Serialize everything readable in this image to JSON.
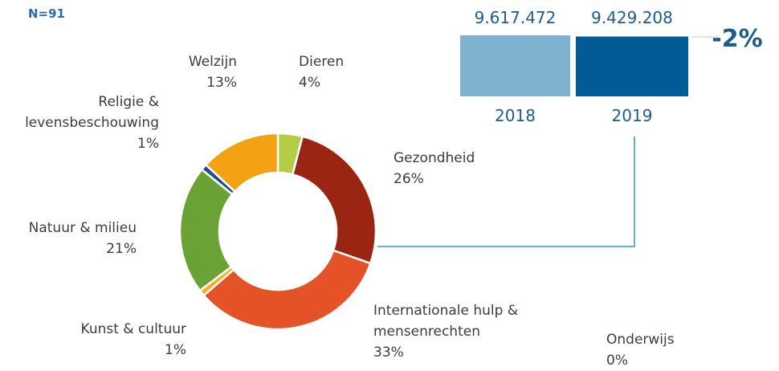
{
  "note": "N=91",
  "chart_data": [
    {
      "type": "donut",
      "categories": [
        "Dieren",
        "Gezondheid",
        "Internationale hulp & mensenrechten",
        "Onderwijs",
        "Kunst & cultuur",
        "Natuur & milieu",
        "Religie & levensbeschouwing",
        "Welzijn"
      ],
      "values": [
        4,
        26,
        33,
        0,
        1,
        21,
        1,
        13
      ],
      "value_labels": [
        "4%",
        "26%",
        "33%",
        "0%",
        "1%",
        "21%",
        "1%",
        "13%"
      ],
      "colors": [
        "#b5cc45",
        "#9a2513",
        "#e45328",
        "#6f2b8f",
        "#f0b323",
        "#6ba235",
        "#1f4f8f",
        "#f4a214"
      ]
    },
    {
      "type": "bar",
      "categories": [
        "2018",
        "2019"
      ],
      "values": [
        9617472,
        9429208
      ],
      "value_labels": [
        "9.617.472",
        "9.429.208"
      ],
      "colors": [
        "#7fb2d0",
        "#005b96"
      ],
      "annotation": "-2%"
    }
  ]
}
